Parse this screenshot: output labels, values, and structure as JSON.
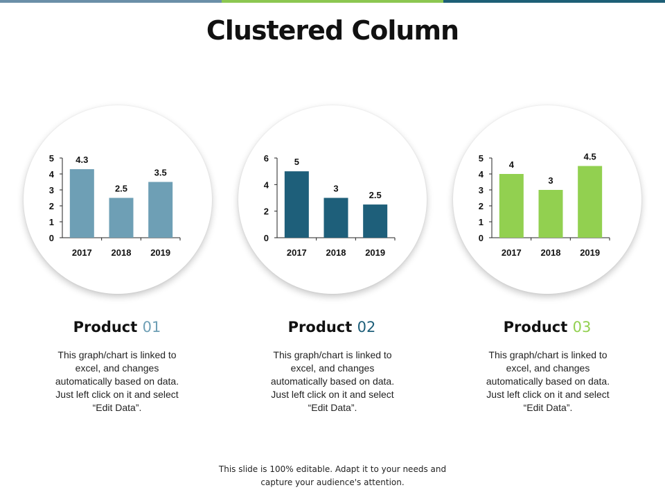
{
  "title": "Clustered Column",
  "colors": {
    "top_bar": [
      "#6b8fa8",
      "#8cc751",
      "#1d5f76"
    ],
    "product1": "#6e9fb5",
    "product2": "#1e5f7a",
    "product3": "#92d050"
  },
  "products": [
    {
      "name": "Product",
      "number": "01",
      "description": "This graph/chart is linked to excel, and changes automatically based on data. Just left click on it and select “Edit Data”."
    },
    {
      "name": "Product",
      "number": "02",
      "description": "This graph/chart is linked to excel, and changes automatically based on data. Just left click on it and select “Edit Data”."
    },
    {
      "name": "Product",
      "number": "03",
      "description": "This graph/chart is linked to excel, and changes automatically based on data. Just left click on it and select “Edit Data”."
    }
  ],
  "footer": "This slide is 100% editable. Adapt it to your needs and capture your audience's attention.",
  "chart_data": [
    {
      "type": "bar",
      "categories": [
        "2017",
        "2018",
        "2019"
      ],
      "values": [
        4.3,
        2.5,
        3.5
      ],
      "data_labels": [
        "4.3",
        "2.5",
        "3.5"
      ],
      "ylim": [
        0,
        5
      ],
      "yticks": [
        "0",
        "1",
        "2",
        "3",
        "4",
        "5"
      ],
      "grid": false
    },
    {
      "type": "bar",
      "categories": [
        "2017",
        "2018",
        "2019"
      ],
      "values": [
        5,
        3,
        2.5
      ],
      "data_labels": [
        "5",
        "3",
        "2.5"
      ],
      "ylim": [
        0,
        6
      ],
      "yticks": [
        "0",
        "2",
        "4",
        "6"
      ],
      "grid": false
    },
    {
      "type": "bar",
      "categories": [
        "2017",
        "2018",
        "2019"
      ],
      "values": [
        4,
        3,
        4.5
      ],
      "data_labels": [
        "4",
        "3",
        "4.5"
      ],
      "ylim": [
        0,
        5
      ],
      "yticks": [
        "0",
        "1",
        "2",
        "3",
        "4",
        "5"
      ],
      "grid": false
    }
  ]
}
